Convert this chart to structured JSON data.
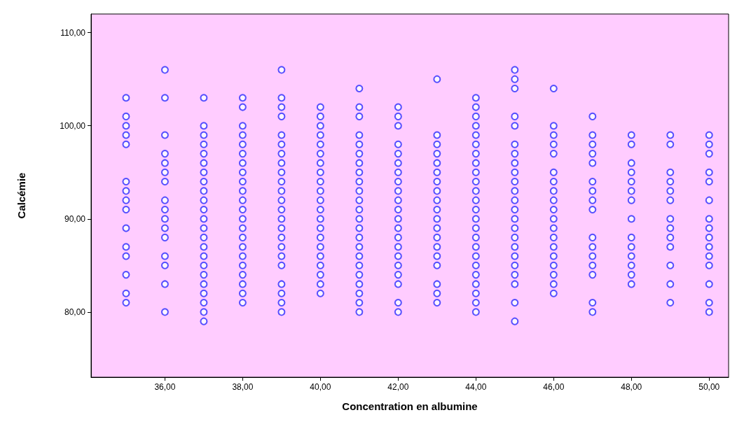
{
  "chart_data": {
    "type": "scatter",
    "xlabel": "Concentration en albumine",
    "ylabel": "Calcémie",
    "marker": "circle",
    "grid": false,
    "xlim": [
      34.1,
      50.5
    ],
    "ylim": [
      73,
      112
    ],
    "xticks": [
      {
        "value": 36,
        "label": "36,00"
      },
      {
        "value": 38,
        "label": "38,00"
      },
      {
        "value": 40,
        "label": "40,00"
      },
      {
        "value": 42,
        "label": "42,00"
      },
      {
        "value": 44,
        "label": "44,00"
      },
      {
        "value": 46,
        "label": "46,00"
      },
      {
        "value": 48,
        "label": "48,00"
      },
      {
        "value": 50,
        "label": "50,00"
      }
    ],
    "yticks": [
      {
        "value": 80,
        "label": "80,00"
      },
      {
        "value": 90,
        "label": "90,00"
      },
      {
        "value": 100,
        "label": "100,00"
      },
      {
        "value": 110,
        "label": "110,00"
      }
    ],
    "series": [
      {
        "color": "#2a2aff",
        "x": [
          35,
          35,
          35,
          35,
          35,
          35,
          35,
          35,
          35,
          35,
          35,
          35,
          35,
          35,
          35
        ],
        "values": [
          103,
          101,
          100,
          99,
          98,
          94,
          93,
          92,
          91,
          89,
          87,
          86,
          84,
          82,
          81
        ]
      },
      {
        "color": "#2a2aff",
        "x": [
          36,
          36,
          36,
          36,
          36,
          36,
          36,
          36,
          36,
          36,
          36,
          36,
          36,
          36,
          36,
          36
        ],
        "values": [
          106,
          103,
          99,
          97,
          96,
          95,
          94,
          92,
          91,
          90,
          89,
          88,
          86,
          85,
          83,
          80
        ]
      },
      {
        "color": "#2a2aff",
        "x": [
          37,
          37,
          37,
          37,
          37,
          37,
          37,
          37,
          37,
          37,
          37,
          37,
          37,
          37,
          37,
          37,
          37,
          37,
          37,
          37,
          37,
          37,
          37
        ],
        "values": [
          103,
          100,
          99,
          98,
          97,
          96,
          95,
          94,
          93,
          92,
          91,
          90,
          89,
          88,
          87,
          86,
          85,
          84,
          83,
          82,
          81,
          80,
          79
        ]
      },
      {
        "color": "#2a2aff",
        "x": [
          38,
          38,
          38,
          38,
          38,
          38,
          38,
          38,
          38,
          38,
          38,
          38,
          38,
          38,
          38,
          38,
          38,
          38,
          38,
          38,
          38,
          38
        ],
        "values": [
          103,
          102,
          100,
          99,
          98,
          97,
          96,
          95,
          94,
          93,
          92,
          91,
          90,
          89,
          88,
          87,
          86,
          85,
          84,
          83,
          82,
          81
        ]
      },
      {
        "color": "#2a2aff",
        "x": [
          39,
          39,
          39,
          39,
          39,
          39,
          39,
          39,
          39,
          39,
          39,
          39,
          39,
          39,
          39,
          39,
          39,
          39,
          39,
          39,
          39,
          39,
          39
        ],
        "values": [
          106,
          103,
          102,
          101,
          99,
          98,
          97,
          96,
          95,
          94,
          93,
          92,
          91,
          90,
          89,
          88,
          87,
          86,
          85,
          83,
          82,
          81,
          80
        ]
      },
      {
        "color": "#2a2aff",
        "x": [
          40,
          40,
          40,
          40,
          40,
          40,
          40,
          40,
          40,
          40,
          40,
          40,
          40,
          40,
          40,
          40,
          40,
          40,
          40,
          40,
          40
        ],
        "values": [
          102,
          101,
          100,
          99,
          98,
          97,
          96,
          95,
          94,
          93,
          92,
          91,
          90,
          89,
          88,
          87,
          86,
          85,
          84,
          83,
          82
        ]
      },
      {
        "color": "#2a2aff",
        "x": [
          41,
          41,
          41,
          41,
          41,
          41,
          41,
          41,
          41,
          41,
          41,
          41,
          41,
          41,
          41,
          41,
          41,
          41,
          41,
          41,
          41,
          41,
          41
        ],
        "values": [
          104,
          102,
          101,
          99,
          98,
          97,
          96,
          95,
          94,
          93,
          92,
          91,
          90,
          89,
          88,
          87,
          86,
          85,
          84,
          83,
          82,
          81,
          80
        ]
      },
      {
        "color": "#2a2aff",
        "x": [
          42,
          42,
          42,
          42,
          42,
          42,
          42,
          42,
          42,
          42,
          42,
          42,
          42,
          42,
          42,
          42,
          42,
          42,
          42,
          42,
          42
        ],
        "values": [
          102,
          101,
          100,
          98,
          97,
          96,
          95,
          94,
          93,
          92,
          91,
          90,
          89,
          88,
          87,
          86,
          85,
          84,
          83,
          81,
          80
        ]
      },
      {
        "color": "#2a2aff",
        "x": [
          43,
          43,
          43,
          43,
          43,
          43,
          43,
          43,
          43,
          43,
          43,
          43,
          43,
          43,
          43,
          43,
          43,
          43,
          43
        ],
        "values": [
          105,
          99,
          98,
          97,
          96,
          95,
          94,
          93,
          92,
          91,
          90,
          89,
          88,
          87,
          86,
          85,
          83,
          82,
          81
        ]
      },
      {
        "color": "#2a2aff",
        "x": [
          44,
          44,
          44,
          44,
          44,
          44,
          44,
          44,
          44,
          44,
          44,
          44,
          44,
          44,
          44,
          44,
          44,
          44,
          44,
          44,
          44,
          44,
          44,
          44
        ],
        "values": [
          103,
          102,
          101,
          100,
          99,
          98,
          97,
          96,
          95,
          94,
          93,
          92,
          91,
          90,
          89,
          88,
          87,
          86,
          85,
          84,
          83,
          82,
          81,
          80
        ]
      },
      {
        "color": "#2a2aff",
        "x": [
          45,
          45,
          45,
          45,
          45,
          45,
          45,
          45,
          45,
          45,
          45,
          45,
          45,
          45,
          45,
          45,
          45,
          45,
          45,
          45,
          45,
          45,
          45
        ],
        "values": [
          106,
          105,
          104,
          101,
          100,
          98,
          97,
          96,
          95,
          94,
          93,
          92,
          91,
          90,
          89,
          88,
          87,
          86,
          85,
          84,
          83,
          81,
          79
        ]
      },
      {
        "color": "#2a2aff",
        "x": [
          46,
          46,
          46,
          46,
          46,
          46,
          46,
          46,
          46,
          46,
          46,
          46,
          46,
          46,
          46,
          46,
          46,
          46,
          46
        ],
        "values": [
          104,
          100,
          99,
          98,
          97,
          95,
          94,
          93,
          92,
          91,
          90,
          89,
          88,
          87,
          86,
          85,
          84,
          83,
          82
        ]
      },
      {
        "color": "#2a2aff",
        "x": [
          47,
          47,
          47,
          47,
          47,
          47,
          47,
          47,
          47,
          47,
          47,
          47,
          47,
          47,
          47,
          47
        ],
        "values": [
          101,
          99,
          98,
          97,
          96,
          94,
          93,
          92,
          91,
          88,
          87,
          86,
          85,
          84,
          81,
          80
        ]
      },
      {
        "color": "#2a2aff",
        "x": [
          48,
          48,
          48,
          48,
          48,
          48,
          48,
          48,
          48,
          48,
          48,
          48,
          48,
          48
        ],
        "values": [
          99,
          98,
          96,
          95,
          94,
          93,
          92,
          90,
          88,
          87,
          86,
          85,
          84,
          83
        ]
      },
      {
        "color": "#2a2aff",
        "x": [
          49,
          49,
          49,
          49,
          49,
          49,
          49,
          49,
          49,
          49,
          49,
          49,
          49
        ],
        "values": [
          99,
          98,
          95,
          94,
          93,
          92,
          90,
          89,
          88,
          87,
          85,
          83,
          81
        ]
      },
      {
        "color": "#2a2aff",
        "x": [
          50,
          50,
          50,
          50,
          50,
          50,
          50,
          50,
          50,
          50,
          50,
          50,
          50,
          50,
          50
        ],
        "values": [
          99,
          98,
          97,
          95,
          94,
          92,
          90,
          89,
          88,
          87,
          86,
          85,
          83,
          81,
          80
        ]
      }
    ]
  }
}
